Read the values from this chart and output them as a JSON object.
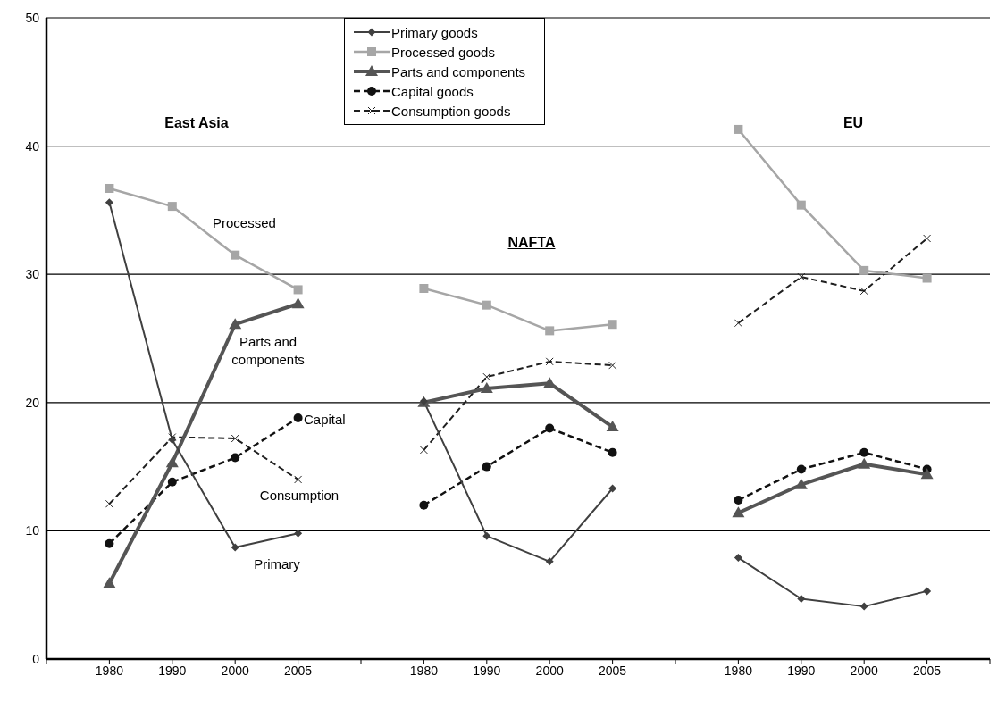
{
  "chart_data": {
    "type": "line",
    "categories": [
      null,
      "1980",
      "1990",
      "2000",
      "2005",
      null,
      "1980",
      "1990",
      "2000",
      "2005",
      null,
      "1980",
      "1990",
      "2000",
      "2005",
      null
    ],
    "series": [
      {
        "name": "Primary goods",
        "color": "#404040",
        "marker": "diamond",
        "line_style": "solid",
        "values": [
          null,
          35.6,
          17.1,
          8.7,
          9.8,
          null,
          20.1,
          9.6,
          7.6,
          13.3,
          null,
          7.9,
          4.7,
          4.1,
          5.3,
          null
        ]
      },
      {
        "name": "Processed goods",
        "color": "#a6a6a6",
        "marker": "square",
        "line_style": "solid",
        "values": [
          null,
          36.7,
          35.3,
          31.5,
          28.8,
          null,
          28.9,
          27.6,
          25.6,
          26.1,
          null,
          41.3,
          35.4,
          30.3,
          29.7,
          null
        ]
      },
      {
        "name": "Parts and components",
        "color": "#555555",
        "marker": "triangle",
        "line_style": "solid",
        "values": [
          null,
          5.9,
          15.3,
          26.1,
          27.7,
          null,
          20.0,
          21.1,
          21.5,
          18.1,
          null,
          11.4,
          13.6,
          15.2,
          14.4,
          null
        ]
      },
      {
        "name": "Capital goods",
        "color": "#111111",
        "marker": "circle",
        "line_style": "dashed",
        "values": [
          null,
          9.0,
          13.8,
          15.7,
          18.8,
          null,
          12.0,
          15.0,
          18.0,
          16.1,
          null,
          12.4,
          14.8,
          16.1,
          14.8,
          null
        ]
      },
      {
        "name": "Consumption goods",
        "color": "#1f1f1f",
        "marker": "cross",
        "line_style": "dashed",
        "values": [
          null,
          12.1,
          17.3,
          17.2,
          14.0,
          null,
          16.3,
          22.0,
          23.2,
          22.9,
          null,
          26.2,
          29.8,
          28.7,
          32.8,
          null
        ]
      }
    ],
    "ylim": [
      0,
      50
    ],
    "yticks": [
      0,
      10,
      20,
      30,
      40,
      50
    ],
    "grid": "y",
    "legend": "top",
    "annotations": [
      "East Asia",
      "NAFTA",
      "EU",
      "Processed",
      "Parts and components",
      "Capital",
      "Consumption",
      "Primary"
    ]
  }
}
